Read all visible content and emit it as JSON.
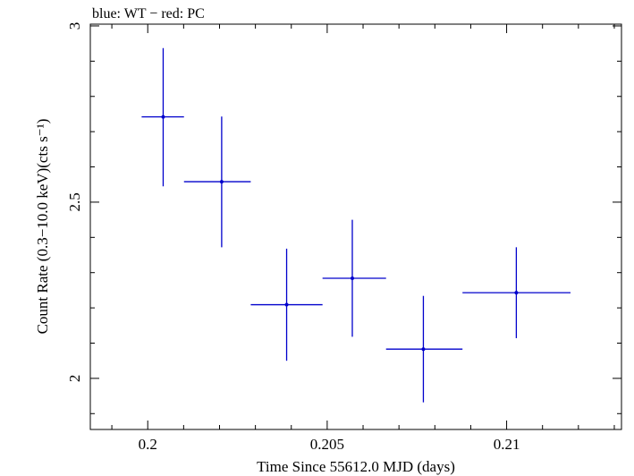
{
  "chart_data": {
    "type": "scatter",
    "title": "blue: WT − red: PC",
    "xlabel": "Time Since 55612.0 MJD (days)",
    "ylabel": "Count Rate (0.3−10.0 keV)(cts s⁻¹)",
    "xlim": [
      0.1984,
      0.2132
    ],
    "ylim": [
      1.855,
      3.005
    ],
    "x_ticks": [
      {
        "value": 0.2,
        "label": "0.2"
      },
      {
        "value": 0.205,
        "label": "0.205"
      },
      {
        "value": 0.21,
        "label": "0.21"
      }
    ],
    "y_ticks": [
      {
        "value": 2,
        "label": "2"
      },
      {
        "value": 2.5,
        "label": "2.5"
      },
      {
        "value": 3,
        "label": "3"
      }
    ],
    "series": [
      {
        "color": "#0000cc",
        "points": [
          {
            "x": 0.20043,
            "y": 2.742,
            "xlo": 0.19983,
            "xhi": 0.20101,
            "ylo": 2.545,
            "yhi": 2.937
          },
          {
            "x": 0.20206,
            "y": 2.558,
            "xlo": 0.20101,
            "xhi": 0.20287,
            "ylo": 2.372,
            "yhi": 2.743
          },
          {
            "x": 0.20387,
            "y": 2.209,
            "xlo": 0.20287,
            "xhi": 0.20487,
            "ylo": 2.05,
            "yhi": 2.368
          },
          {
            "x": 0.2057,
            "y": 2.284,
            "xlo": 0.20487,
            "xhi": 0.20664,
            "ylo": 2.118,
            "yhi": 2.45
          },
          {
            "x": 0.20768,
            "y": 2.083,
            "xlo": 0.20664,
            "xhi": 0.20877,
            "ylo": 1.932,
            "yhi": 2.234
          },
          {
            "x": 0.21027,
            "y": 2.243,
            "xlo": 0.20877,
            "xhi": 0.21178,
            "ylo": 2.114,
            "yhi": 2.372
          }
        ]
      }
    ]
  }
}
